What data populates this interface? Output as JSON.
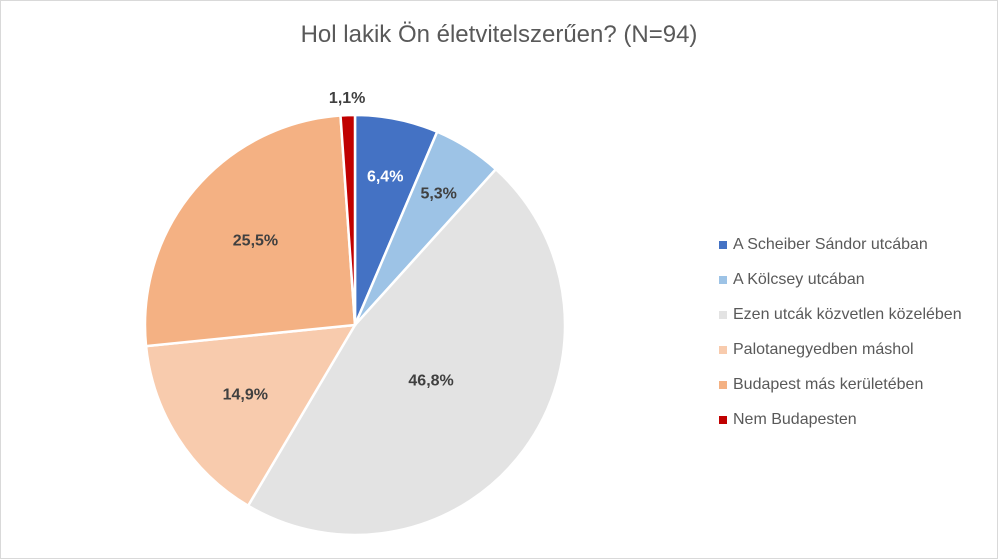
{
  "chart_data": {
    "type": "pie",
    "title": "Hol lakik Ön életvitelszerűen? (N=94)",
    "categories": [
      "A Scheiber Sándor utcában",
      "A Kölcsey utcában",
      "Ezen utcák közvetlen közelében",
      "Palotanegyedben máshol",
      "Budapest más kerületében",
      "Nem Budapesten"
    ],
    "values": [
      6.4,
      5.3,
      46.8,
      14.9,
      25.5,
      1.1
    ],
    "labels": [
      "6,4%",
      "5,3%",
      "46,8%",
      "14,9%",
      "25,5%",
      "1,1%"
    ],
    "colors": [
      "#4472c4",
      "#9dc3e6",
      "#e3e3e3",
      "#f8cbad",
      "#f4b183",
      "#c00000"
    ],
    "label_colors": [
      "#ffffff",
      "#404040",
      "#404040",
      "#404040",
      "#404040",
      "#404040"
    ],
    "legend_position": "right"
  }
}
